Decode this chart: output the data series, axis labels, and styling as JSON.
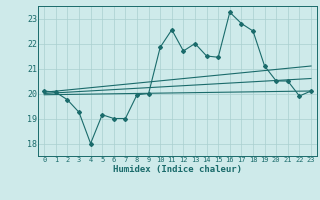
{
  "xlabel": "Humidex (Indice chaleur)",
  "bg_color": "#ceeaea",
  "grid_color": "#aacfcf",
  "line_color": "#1a6b6b",
  "xlim": [
    -0.5,
    23.5
  ],
  "ylim": [
    17.5,
    23.5
  ],
  "yticks": [
    18,
    19,
    20,
    21,
    22,
    23
  ],
  "xticks": [
    0,
    1,
    2,
    3,
    4,
    5,
    6,
    7,
    8,
    9,
    10,
    11,
    12,
    13,
    14,
    15,
    16,
    17,
    18,
    19,
    20,
    21,
    22,
    23
  ],
  "series_jagged": [
    [
      0,
      20.1
    ],
    [
      1,
      20.05
    ],
    [
      2,
      19.75
    ],
    [
      3,
      19.25
    ],
    [
      4,
      18.0
    ],
    [
      5,
      19.15
    ],
    [
      6,
      19.0
    ],
    [
      7,
      19.0
    ],
    [
      8,
      19.95
    ],
    [
      9,
      20.0
    ],
    [
      10,
      21.85
    ],
    [
      11,
      22.55
    ],
    [
      12,
      21.7
    ],
    [
      13,
      22.0
    ],
    [
      14,
      21.5
    ],
    [
      15,
      21.45
    ],
    [
      16,
      23.25
    ],
    [
      17,
      22.8
    ],
    [
      18,
      22.5
    ],
    [
      19,
      21.1
    ],
    [
      20,
      20.5
    ],
    [
      21,
      20.5
    ],
    [
      22,
      19.9
    ],
    [
      23,
      20.1
    ]
  ],
  "series_upper": [
    [
      0,
      20.05
    ],
    [
      23,
      21.1
    ]
  ],
  "series_lower": [
    [
      0,
      19.95
    ],
    [
      23,
      20.1
    ]
  ],
  "series_mid": [
    [
      0,
      20.0
    ],
    [
      23,
      20.6
    ]
  ]
}
